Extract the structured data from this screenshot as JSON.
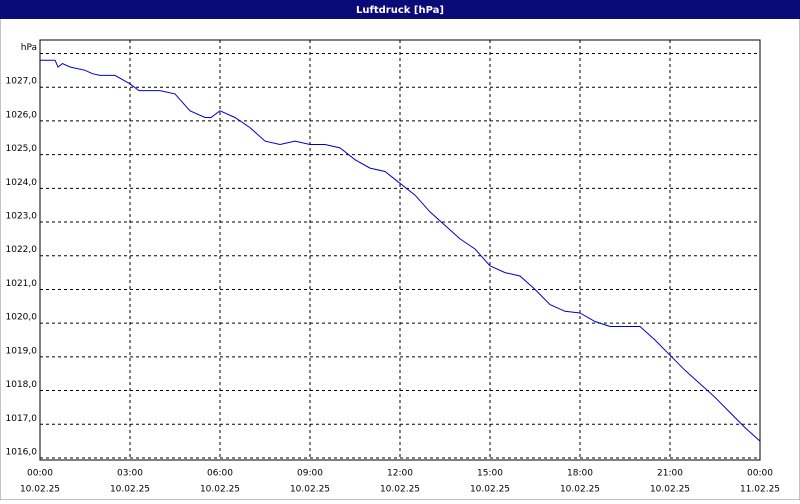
{
  "chart_data": {
    "type": "line",
    "title": "Luftdruck [hPa]",
    "x": [
      0,
      0.5,
      0.6,
      0.75,
      1,
      1.5,
      1.75,
      2,
      2.5,
      2.8,
      3,
      3.3,
      4,
      4.5,
      5,
      5.5,
      5.7,
      6,
      6.5,
      7,
      7.5,
      8,
      8.5,
      9,
      9.5,
      10,
      10.5,
      11,
      11.5,
      12,
      12.5,
      13,
      13.5,
      14,
      14.5,
      15,
      15.5,
      16,
      16.5,
      17,
      17.5,
      18,
      18.5,
      19,
      20,
      20.5,
      21,
      21.5,
      22,
      22.5,
      23,
      23.5,
      23.75,
      24
    ],
    "series": [
      {
        "name": "Luftdruck",
        "color": "#0000cc",
        "values": [
          1027.8,
          1027.8,
          1027.6,
          1027.7,
          1027.6,
          1027.5,
          1027.4,
          1027.35,
          1027.35,
          1027.2,
          1027.1,
          1026.9,
          1026.9,
          1026.8,
          1026.3,
          1026.1,
          1026.1,
          1026.3,
          1026.1,
          1025.8,
          1025.4,
          1025.3,
          1025.4,
          1025.3,
          1025.3,
          1025.2,
          1024.85,
          1024.6,
          1024.5,
          1024.15,
          1023.8,
          1023.3,
          1022.9,
          1022.5,
          1022.2,
          1021.7,
          1021.5,
          1021.4,
          1021.0,
          1020.55,
          1020.35,
          1020.3,
          1020.05,
          1019.9,
          1019.9,
          1019.5,
          1019.05,
          1018.6,
          1018.2,
          1017.8,
          1017.35,
          1016.9,
          1016.7,
          1016.5
        ]
      }
    ],
    "xlim": [
      0,
      24
    ],
    "xticks": [
      {
        "value": 0,
        "label": "00:00",
        "date": "10.02.25"
      },
      {
        "value": 3,
        "label": "03:00",
        "date": "10.02.25"
      },
      {
        "value": 6,
        "label": "06:00",
        "date": "10.02.25"
      },
      {
        "value": 9,
        "label": "09:00",
        "date": "10.02.25"
      },
      {
        "value": 12,
        "label": "12:00",
        "date": "10.02.25"
      },
      {
        "value": 15,
        "label": "15:00",
        "date": "10.02.25"
      },
      {
        "value": 18,
        "label": "18:00",
        "date": "10.02.25"
      },
      {
        "value": 21,
        "label": "21:00",
        "date": "10.02.25"
      },
      {
        "value": 24,
        "label": "00:00",
        "date": "11.02.25"
      }
    ],
    "ylim": [
      1015.94,
      1028.4
    ],
    "yticks": [
      {
        "value": 1016,
        "label": "1016,0"
      },
      {
        "value": 1017,
        "label": "1017,0"
      },
      {
        "value": 1018,
        "label": "1018,0"
      },
      {
        "value": 1019,
        "label": "1019,0"
      },
      {
        "value": 1020,
        "label": "1020,0"
      },
      {
        "value": 1021,
        "label": "1021,0"
      },
      {
        "value": 1022,
        "label": "1022,0"
      },
      {
        "value": 1023,
        "label": "1023,0"
      },
      {
        "value": 1024,
        "label": "1024,0"
      },
      {
        "value": 1025,
        "label": "1025,0"
      },
      {
        "value": 1026,
        "label": "1026,0"
      },
      {
        "value": 1027,
        "label": "1027,0"
      },
      {
        "value": 1028,
        "label": "hPa"
      }
    ],
    "grid": true
  }
}
